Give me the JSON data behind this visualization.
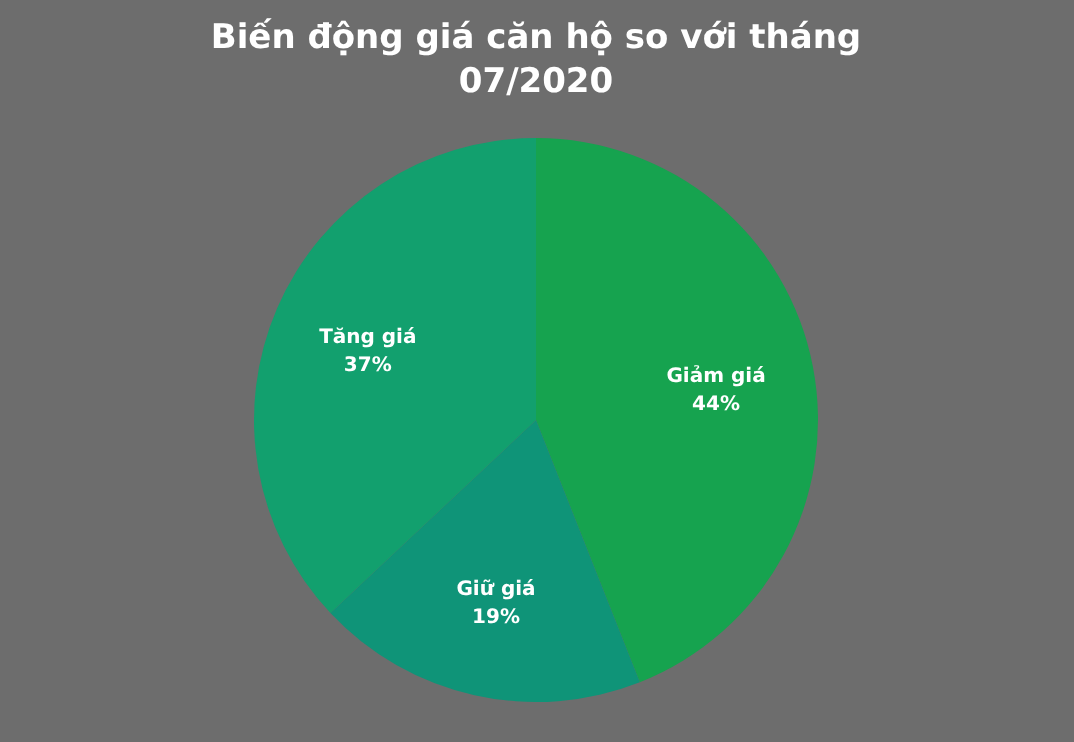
{
  "chart_data": {
    "type": "pie",
    "title": "Biến động giá căn hộ so với tháng 07/2020",
    "categories": [
      "Giảm giá",
      "Giữ giá",
      "Tăng giá"
    ],
    "values": [
      44,
      19,
      37
    ],
    "colors": [
      "#16a34f",
      "#0f9478",
      "#12a06e"
    ],
    "value_labels": [
      "44%",
      "19%",
      "37%"
    ]
  }
}
